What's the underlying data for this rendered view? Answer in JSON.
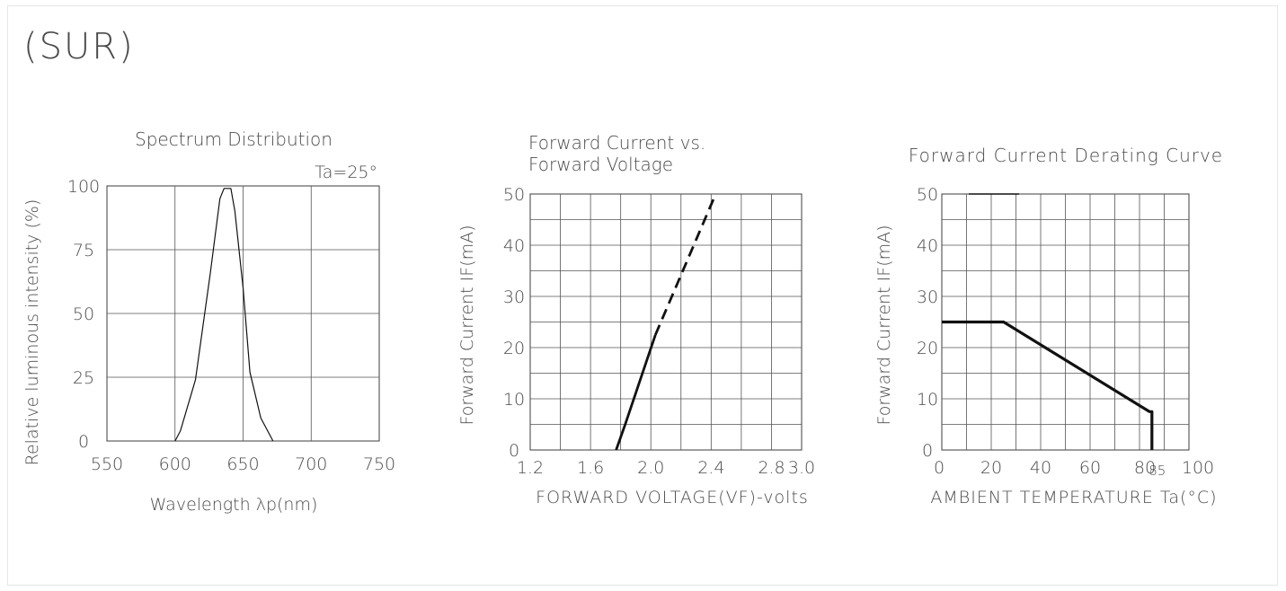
{
  "part_code": "(SUR)",
  "chart_data": [
    {
      "type": "line",
      "title": "Spectrum Distribution",
      "annotation": "Ta=25°",
      "xlabel": "Wavelength λp(nm)",
      "ylabel": "Relative luminous intensity (%)",
      "xlim": [
        550,
        750
      ],
      "ylim": [
        0,
        100
      ],
      "xticks": [
        "550",
        "600",
        "650",
        "700",
        "750"
      ],
      "yticks": [
        "0",
        "25",
        "50",
        "75",
        "100"
      ],
      "grid": true,
      "series": [
        {
          "values": [
            [
              600,
              0
            ],
            [
              604,
              4
            ],
            [
              615,
              24
            ],
            [
              626,
              66
            ],
            [
              633,
              95
            ],
            [
              636,
              99
            ],
            [
              641,
              99
            ],
            [
              644,
              90
            ],
            [
              650,
              60
            ],
            [
              655,
              27
            ],
            [
              663,
              9
            ],
            [
              672,
              0
            ]
          ]
        }
      ]
    },
    {
      "type": "line",
      "title": "Forward Current vs. Forward Voltage",
      "xlabel": "FORWARD VOLTAGE(VF)-volts",
      "ylabel": "Forward Current IF(mA)",
      "xlim": [
        1.2,
        3.0
      ],
      "ylim": [
        0,
        50
      ],
      "xticks": [
        "1.2",
        "1.6",
        "2.0",
        "2.4",
        "2.8",
        "3.0"
      ],
      "yticks": [
        "0",
        "10",
        "20",
        "30",
        "40",
        "50"
      ],
      "grid": true,
      "series": [
        {
          "style": "solid",
          "values": [
            [
              1.77,
              0
            ],
            [
              1.83,
              5
            ],
            [
              2.03,
              22.5
            ]
          ]
        },
        {
          "style": "dashed",
          "values": [
            [
              2.03,
              22.5
            ],
            [
              2.43,
              50
            ]
          ]
        }
      ]
    },
    {
      "type": "line",
      "title": "Forward Current Derating Curve",
      "xlabel": "AMBIENT TEMPERATURE Ta(°C)",
      "ylabel": "Forward Current IF(mA)",
      "xlim": [
        0,
        100
      ],
      "ylim": [
        0,
        50
      ],
      "xticks": [
        "0",
        "20",
        "40",
        "60",
        "80",
        "85",
        "100"
      ],
      "yticks": [
        "0",
        "10",
        "20",
        "30",
        "40",
        "50"
      ],
      "grid": true,
      "series": [
        {
          "values": [
            [
              0,
              25
            ],
            [
              25,
              25
            ],
            [
              84,
              7.5
            ],
            [
              85,
              7.5
            ],
            [
              85,
              0
            ]
          ]
        }
      ]
    }
  ]
}
